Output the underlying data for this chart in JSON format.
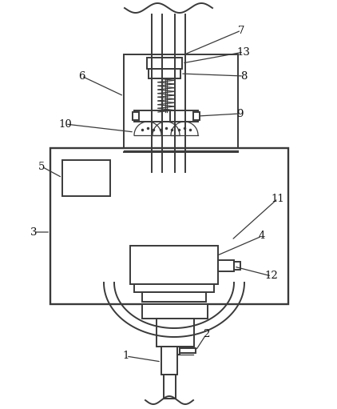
{
  "bg_color": "#ffffff",
  "line_color": "#3a3a3a",
  "line_width": 1.4,
  "thin_line": 0.9,
  "figsize": [
    4.22,
    5.11
  ],
  "dpi": 100,
  "label_fontsize": 9.5,
  "label_color": "#111111"
}
